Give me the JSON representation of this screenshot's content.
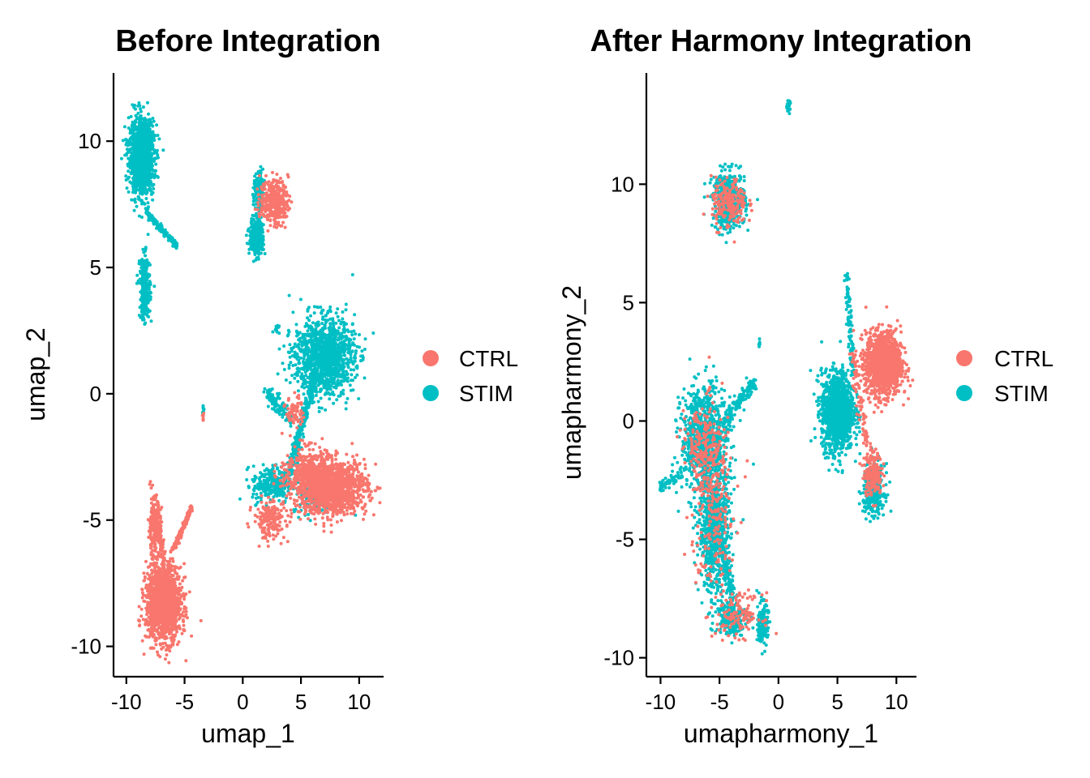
{
  "chart_data": [
    {
      "type": "scatter",
      "title": "Before Integration",
      "xlabel": "umap_1",
      "ylabel": "umap_2",
      "xlim": [
        -11.1,
        12.1
      ],
      "ylim": [
        -11.2,
        12.7
      ],
      "xticks": [
        -10,
        -5,
        0,
        5,
        10
      ],
      "yticks": [
        -10,
        -5,
        0,
        5,
        10
      ],
      "xtick_labels": [
        "-10",
        "-5",
        "0",
        "5",
        "10"
      ],
      "ytick_labels": [
        "-10",
        "-5",
        "0",
        "5",
        "10"
      ],
      "grid": false,
      "legend": {
        "position": "right",
        "entries": [
          "CTRL",
          "STIM"
        ]
      },
      "series": [
        {
          "name": "CTRL",
          "color": "#F8766D",
          "clusters": [
            {
              "cx": -6.8,
              "cy": -8.3,
              "sx": 1.0,
              "sy": 1.0,
              "n": 1400
            },
            {
              "cx": -7.6,
              "cy": -5.3,
              "sx": 0.35,
              "sy": 0.8,
              "n": 220
            },
            {
              "cx": 7.5,
              "cy": -3.7,
              "sx": 2.1,
              "sy": 0.7,
              "n": 1400
            },
            {
              "cx": 5.5,
              "cy": -3.0,
              "sx": 1.2,
              "sy": 0.6,
              "n": 250
            },
            {
              "cx": 2.3,
              "cy": -5.0,
              "sx": 0.9,
              "sy": 0.5,
              "n": 180
            },
            {
              "cx": 2.7,
              "cy": 7.6,
              "sx": 0.8,
              "sy": 0.6,
              "n": 320
            },
            {
              "cx": 4.5,
              "cy": -0.7,
              "sx": 0.5,
              "sy": 0.4,
              "n": 60
            },
            {
              "cx": -3.4,
              "cy": -0.9,
              "sx": 0.05,
              "sy": 0.15,
              "n": 6
            }
          ],
          "streaks": [
            {
              "x0": -6.0,
              "y0": -6.2,
              "x1": -4.4,
              "y1": -4.5,
              "w": 0.12,
              "n": 140
            },
            {
              "x0": -6.8,
              "y0": -6.7,
              "x1": -7.3,
              "y1": -4.9,
              "w": 0.2,
              "n": 80
            }
          ]
        },
        {
          "name": "STIM",
          "color": "#00BFC4",
          "clusters": [
            {
              "cx": -8.7,
              "cy": 9.4,
              "sx": 0.7,
              "sy": 0.95,
              "n": 1300
            },
            {
              "cx": -8.4,
              "cy": 4.2,
              "sx": 0.3,
              "sy": 0.85,
              "n": 280
            },
            {
              "cx": 7.0,
              "cy": 1.5,
              "sx": 1.7,
              "sy": 1.0,
              "n": 1200
            },
            {
              "cx": 1.2,
              "cy": 6.2,
              "sx": 0.4,
              "sy": 0.5,
              "n": 300
            },
            {
              "cx": 1.4,
              "cy": 7.9,
              "sx": 0.3,
              "sy": 0.6,
              "n": 180
            },
            {
              "cx": 2.5,
              "cy": -3.6,
              "sx": 1.1,
              "sy": 0.5,
              "n": 260
            },
            {
              "cx": 6.5,
              "cy": -4.0,
              "sx": 1.5,
              "sy": 0.5,
              "n": 180
            },
            {
              "cx": 2.9,
              "cy": 2.6,
              "sx": 0.15,
              "sy": 0.15,
              "n": 12
            },
            {
              "cx": -3.4,
              "cy": -0.6,
              "sx": 0.05,
              "sy": 0.1,
              "n": 8
            }
          ],
          "streaks": [
            {
              "x0": 4.0,
              "y0": -3.2,
              "x1": 6.2,
              "y1": 0.8,
              "w": 0.3,
              "n": 280
            },
            {
              "x0": -8.3,
              "y0": 7.2,
              "x1": -5.6,
              "y1": 5.8,
              "w": 0.15,
              "n": 120
            },
            {
              "x0": 2.0,
              "y0": 0.0,
              "x1": 4.2,
              "y1": -1.0,
              "w": 0.3,
              "n": 100
            }
          ]
        }
      ]
    },
    {
      "type": "scatter",
      "title": "After Harmony Integration",
      "xlabel": "umapharmony_1",
      "ylabel": "umapharmony_2",
      "xlim": [
        -11.2,
        11.7
      ],
      "ylim": [
        -10.8,
        14.7
      ],
      "xticks": [
        -10,
        -5,
        0,
        5,
        10
      ],
      "yticks": [
        -10,
        -5,
        0,
        5,
        10
      ],
      "xtick_labels": [
        "-10",
        "-5",
        "0",
        "5",
        "10"
      ],
      "ytick_labels": [
        "-10",
        "-5",
        "0",
        "5",
        "10"
      ],
      "grid": false,
      "legend": {
        "position": "right",
        "entries": [
          "CTRL",
          "STIM"
        ]
      },
      "series": [
        {
          "name": "CTRL",
          "color": "#F8766D",
          "clusters": [
            {
              "cx": 8.9,
              "cy": 2.4,
              "sx": 1.0,
              "sy": 0.9,
              "n": 1400
            },
            {
              "cx": 8.0,
              "cy": -2.2,
              "sx": 0.5,
              "sy": 0.6,
              "n": 200
            },
            {
              "cx": -4.2,
              "cy": 9.2,
              "sx": 1.0,
              "sy": 0.7,
              "n": 200
            },
            {
              "cx": -5.5,
              "cy": -3.5,
              "sx": 1.2,
              "sy": 2.5,
              "n": 250
            },
            {
              "cx": -3.3,
              "cy": -8.2,
              "sx": 1.3,
              "sy": 0.6,
              "n": 120
            },
            {
              "cx": -6.5,
              "cy": -1.0,
              "sx": 1.2,
              "sy": 1.0,
              "n": 150
            }
          ],
          "streaks": [
            {
              "x0": 6.3,
              "y0": 3.0,
              "x1": 7.5,
              "y1": -1.0,
              "w": 0.3,
              "n": 80
            }
          ]
        },
        {
          "name": "STIM",
          "color": "#00BFC4",
          "clusters": [
            {
              "cx": 5.0,
              "cy": 0.4,
              "sx": 0.9,
              "sy": 1.1,
              "n": 1300
            },
            {
              "cx": 8.1,
              "cy": -2.9,
              "sx": 0.6,
              "sy": 0.7,
              "n": 350
            },
            {
              "cx": -6.3,
              "cy": -0.8,
              "sx": 1.3,
              "sy": 1.5,
              "n": 900
            },
            {
              "cx": -5.4,
              "cy": -4.6,
              "sx": 0.9,
              "sy": 1.7,
              "n": 800
            },
            {
              "cx": -4.2,
              "cy": 9.3,
              "sx": 0.9,
              "sy": 0.8,
              "n": 500
            },
            {
              "cx": -4.0,
              "cy": -8.3,
              "sx": 0.9,
              "sy": 0.5,
              "n": 200
            },
            {
              "cx": -1.3,
              "cy": -8.6,
              "sx": 0.3,
              "sy": 0.6,
              "n": 150
            },
            {
              "cx": 0.8,
              "cy": 13.3,
              "sx": 0.12,
              "sy": 0.15,
              "n": 25
            },
            {
              "cx": -1.6,
              "cy": 3.3,
              "sx": 0.05,
              "sy": 0.1,
              "n": 6
            }
          ],
          "streaks": [
            {
              "x0": 5.8,
              "y0": 6.1,
              "x1": 6.3,
              "y1": 2.0,
              "w": 0.2,
              "n": 100
            },
            {
              "x0": -4.5,
              "y0": 0.0,
              "x1": -2.0,
              "y1": 1.7,
              "w": 0.35,
              "n": 120
            },
            {
              "x0": -10.0,
              "y0": -2.8,
              "x1": -8.3,
              "y1": -2.3,
              "w": 0.2,
              "n": 60
            },
            {
              "x0": -3.8,
              "y0": -7.5,
              "x1": -5.0,
              "y1": -5.0,
              "w": 0.35,
              "n": 120
            }
          ]
        }
      ]
    }
  ]
}
